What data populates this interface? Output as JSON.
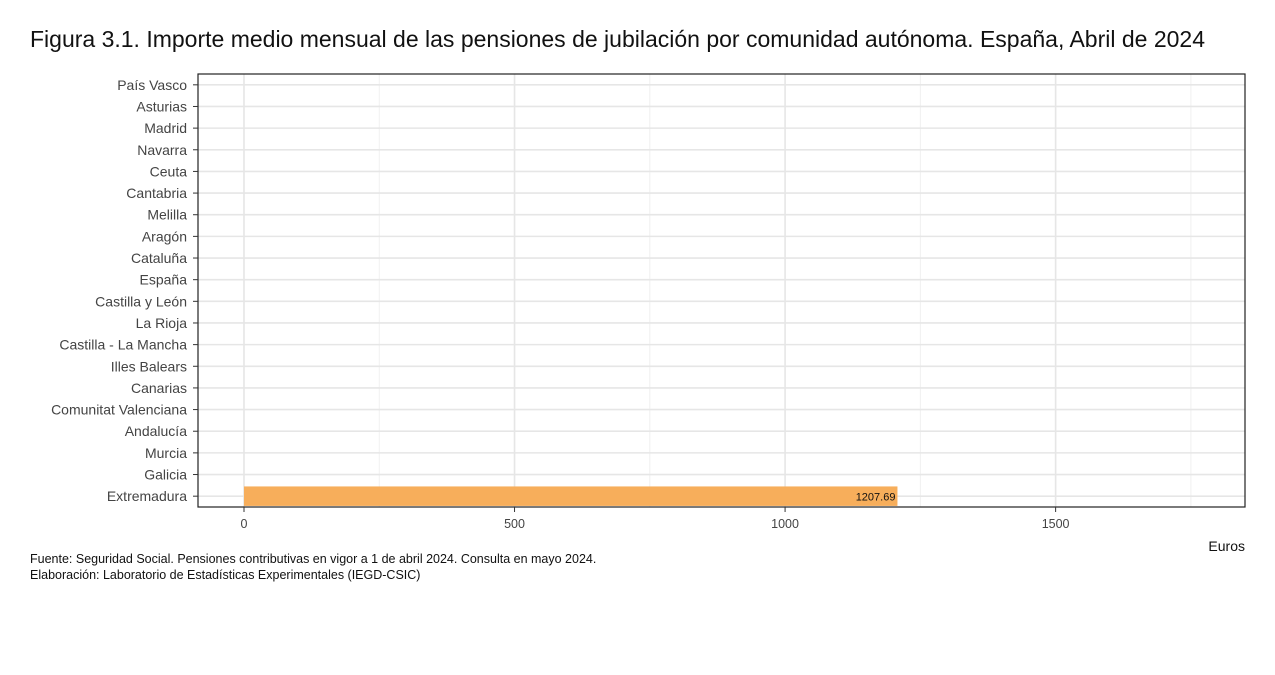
{
  "chart_data": {
    "type": "bar",
    "orientation": "horizontal",
    "title": "Figura 3.1. Importe medio mensual de las pensiones de jubilación por comunidad autónoma. España, Abril de 2024",
    "xlabel": "Euros",
    "ylabel": "",
    "categories": [
      "País Vasco",
      "Asturias",
      "Madrid",
      "Navarra",
      "Ceuta",
      "Cantabria",
      "Melilla",
      "Aragón",
      "Cataluña",
      "España",
      "Castilla y León",
      "La Rioja",
      "Castilla - La Mancha",
      "Illes Balears",
      "Canarias",
      "Comunitat Valenciana",
      "Andalucía",
      "Murcia",
      "Galicia",
      "Extremadura"
    ],
    "values": [
      null,
      null,
      null,
      null,
      null,
      null,
      null,
      null,
      null,
      null,
      null,
      null,
      null,
      null,
      null,
      null,
      null,
      null,
      null,
      1207.69
    ],
    "value_labels": [
      "",
      "",
      "",
      "",
      "",
      "",
      "",
      "",
      "",
      "",
      "",
      "",
      "",
      "",
      "",
      "",
      "",
      "",
      "",
      "1207.69"
    ],
    "xlim": [
      -85,
      1850
    ],
    "xticks": [
      0,
      500,
      1000,
      1500
    ],
    "xtick_labels": [
      "0",
      "500",
      "1000",
      "1500"
    ],
    "bar_color": "#f7ae5b",
    "grid": true,
    "legend": "none"
  },
  "notes": {
    "source": "Fuente: Seguridad Social. Pensiones contributivas en vigor a 1 de abril 2024. Consulta en mayo 2024.",
    "credit": "Elaboración: Laboratorio de Estadísticas Experimentales (IEGD-CSIC)"
  }
}
